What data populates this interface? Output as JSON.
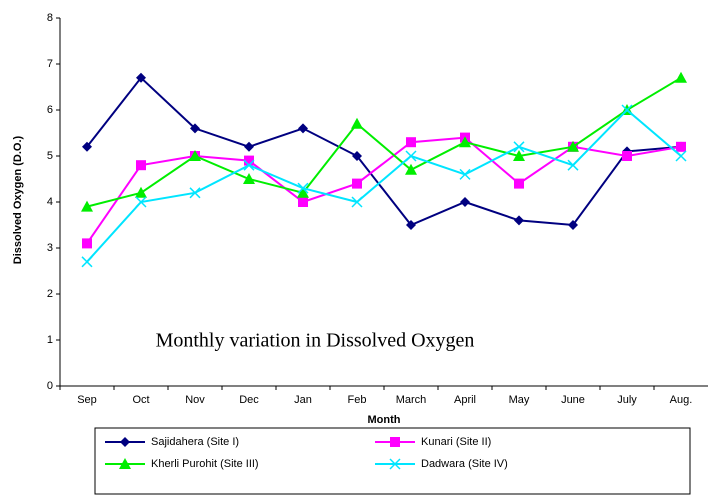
{
  "chart_data": {
    "type": "line",
    "annotation": "Monthly variation in Dissolved Oxygen",
    "y_label": "Dissolved Oxygen (D.O.)",
    "x_label": "Month",
    "categories": [
      "Sep",
      "Oct",
      "Nov",
      "Dec",
      "Jan",
      "Feb",
      "March",
      "April",
      "May",
      "June",
      "July",
      "Aug."
    ],
    "ylim": [
      0,
      8
    ],
    "yticks": [
      0,
      1,
      2,
      3,
      4,
      5,
      6,
      7,
      8
    ],
    "series": [
      {
        "name": "Sajidahera (Site I)",
        "color": "#000080",
        "marker": "diamond",
        "values": [
          5.2,
          6.7,
          5.6,
          5.2,
          5.6,
          5.0,
          3.5,
          4.0,
          3.6,
          3.5,
          5.1,
          5.2
        ]
      },
      {
        "name": "Kunari (Site II)",
        "color": "#ff00ff",
        "marker": "square",
        "values": [
          3.1,
          4.8,
          5.0,
          4.9,
          4.0,
          4.4,
          5.3,
          5.4,
          4.4,
          5.2,
          5.0,
          5.2
        ]
      },
      {
        "name": "Kherli Purohit (Site III)",
        "color": "#00ee00",
        "marker": "triangle",
        "values": [
          3.9,
          4.2,
          5.0,
          4.5,
          4.2,
          5.7,
          4.7,
          5.3,
          5.0,
          5.2,
          6.0,
          6.7
        ]
      },
      {
        "name": "Dadwara (Site IV)",
        "color": "#00e5ff",
        "marker": "x",
        "values": [
          2.7,
          4.0,
          4.2,
          4.8,
          4.3,
          4.0,
          5.0,
          4.6,
          5.2,
          4.8,
          6.0,
          5.0
        ]
      }
    ]
  }
}
